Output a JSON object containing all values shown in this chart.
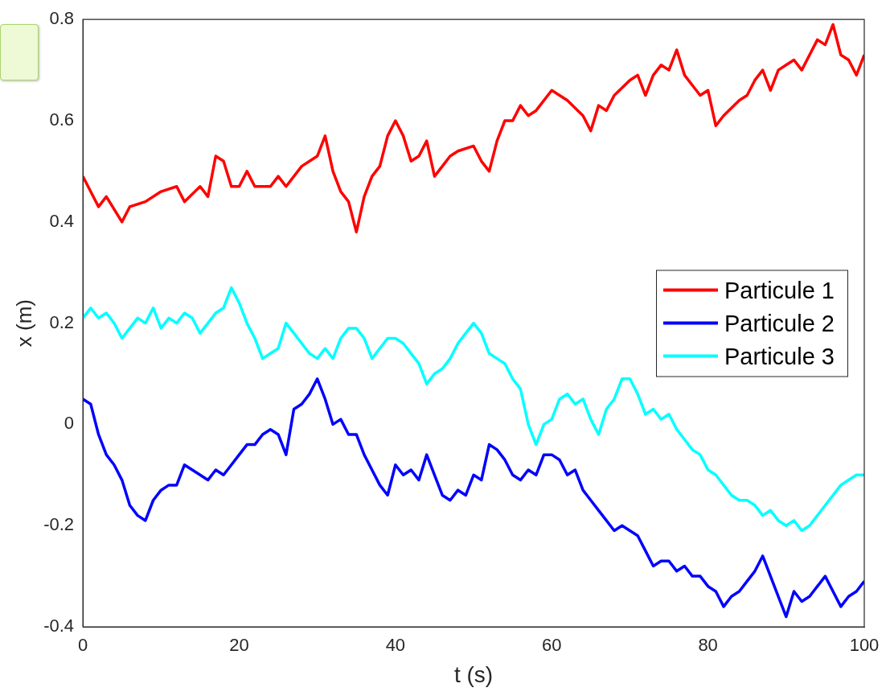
{
  "chart_data": {
    "type": "line",
    "xlabel": "t (s)",
    "ylabel": "x (m)",
    "xlim": [
      0,
      100
    ],
    "xticks": [
      0,
      20,
      40,
      60,
      80,
      100
    ],
    "ylim": [
      -0.4,
      0.8
    ],
    "yticks": [
      -0.4,
      -0.2,
      0,
      0.2,
      0.4,
      0.6,
      0.8
    ],
    "grid": false,
    "legend": "right",
    "marker": "none",
    "line_style": "solid",
    "x": [
      0,
      1,
      2,
      3,
      4,
      5,
      6,
      7,
      8,
      9,
      10,
      11,
      12,
      13,
      14,
      15,
      16,
      17,
      18,
      19,
      20,
      21,
      22,
      23,
      24,
      25,
      26,
      27,
      28,
      29,
      30,
      31,
      32,
      33,
      34,
      35,
      36,
      37,
      38,
      39,
      40,
      41,
      42,
      43,
      44,
      45,
      46,
      47,
      48,
      49,
      50,
      51,
      52,
      53,
      54,
      55,
      56,
      57,
      58,
      59,
      60,
      61,
      62,
      63,
      64,
      65,
      66,
      67,
      68,
      69,
      70,
      71,
      72,
      73,
      74,
      75,
      76,
      77,
      78,
      79,
      80,
      81,
      82,
      83,
      84,
      85,
      86,
      87,
      88,
      89,
      90,
      91,
      92,
      93,
      94,
      95,
      96,
      97,
      98,
      99,
      100
    ],
    "series": [
      {
        "name": "Particule 1",
        "color": "#ff0000",
        "x": [
          0,
          2,
          3,
          5,
          6,
          8,
          10,
          12,
          13,
          15,
          16,
          17,
          18,
          19,
          20,
          21,
          22,
          24,
          25,
          26,
          28,
          30,
          31,
          32,
          33,
          34,
          35,
          36,
          37,
          38,
          39,
          40,
          41,
          42,
          43,
          44,
          45,
          46,
          47,
          48,
          50,
          51,
          52,
          53,
          54,
          55,
          56,
          57,
          58,
          60,
          61,
          62,
          64,
          65,
          66,
          67,
          68,
          70,
          71,
          72,
          73,
          74,
          75,
          76,
          77,
          78,
          79,
          80,
          81,
          82,
          84,
          85,
          86,
          87,
          88,
          89,
          90,
          91,
          92,
          93,
          94,
          95,
          96,
          97,
          98,
          99,
          100
        ],
        "values": [
          0.49,
          0.43,
          0.45,
          0.4,
          0.43,
          0.44,
          0.46,
          0.47,
          0.44,
          0.47,
          0.45,
          0.53,
          0.52,
          0.47,
          0.47,
          0.5,
          0.47,
          0.47,
          0.49,
          0.47,
          0.51,
          0.53,
          0.57,
          0.5,
          0.46,
          0.44,
          0.38,
          0.45,
          0.49,
          0.51,
          0.57,
          0.6,
          0.57,
          0.52,
          0.53,
          0.56,
          0.49,
          0.51,
          0.53,
          0.54,
          0.55,
          0.52,
          0.5,
          0.56,
          0.6,
          0.6,
          0.63,
          0.61,
          0.62,
          0.66,
          0.65,
          0.64,
          0.61,
          0.58,
          0.63,
          0.62,
          0.65,
          0.68,
          0.69,
          0.65,
          0.69,
          0.71,
          0.7,
          0.74,
          0.69,
          0.67,
          0.65,
          0.66,
          0.59,
          0.61,
          0.64,
          0.65,
          0.68,
          0.7,
          0.66,
          0.7,
          0.71,
          0.72,
          0.7,
          0.73,
          0.76,
          0.75,
          0.79,
          0.73,
          0.72,
          0.69,
          0.73
        ]
      },
      {
        "name": "Particule 2",
        "color": "#0000ff",
        "values": [
          0.05,
          0.04,
          -0.02,
          -0.06,
          -0.08,
          -0.11,
          -0.16,
          -0.18,
          -0.19,
          -0.15,
          -0.13,
          -0.12,
          -0.12,
          -0.08,
          -0.09,
          -0.1,
          -0.11,
          -0.09,
          -0.1,
          -0.08,
          -0.06,
          -0.04,
          -0.04,
          -0.02,
          -0.01,
          -0.02,
          -0.06,
          0.03,
          0.04,
          0.06,
          0.09,
          0.05,
          0,
          0.01,
          -0.02,
          -0.02,
          -0.06,
          -0.09,
          -0.12,
          -0.14,
          -0.08,
          -0.1,
          -0.09,
          -0.11,
          -0.06,
          -0.1,
          -0.14,
          -0.15,
          -0.13,
          -0.14,
          -0.1,
          -0.11,
          -0.04,
          -0.05,
          -0.07,
          -0.1,
          -0.11,
          -0.09,
          -0.1,
          -0.06,
          -0.06,
          -0.07,
          -0.1,
          -0.09,
          -0.13,
          -0.15,
          -0.17,
          -0.19,
          -0.21,
          -0.2,
          -0.21,
          -0.22,
          -0.25,
          -0.28,
          -0.27,
          -0.27,
          -0.29,
          -0.28,
          -0.3,
          -0.3,
          -0.32,
          -0.33,
          -0.36,
          -0.34,
          -0.33,
          -0.31,
          -0.29,
          -0.26,
          -0.3,
          -0.34,
          -0.38,
          -0.33,
          -0.35,
          -0.34,
          -0.32,
          -0.3,
          -0.33,
          -0.36,
          -0.34,
          -0.33,
          -0.31
        ]
      },
      {
        "name": "Particule 3",
        "color": "#00ffff",
        "values": [
          0.21,
          0.23,
          0.21,
          0.22,
          0.2,
          0.17,
          0.19,
          0.21,
          0.2,
          0.23,
          0.19,
          0.21,
          0.2,
          0.22,
          0.21,
          0.18,
          0.2,
          0.22,
          0.23,
          0.27,
          0.24,
          0.2,
          0.17,
          0.13,
          0.14,
          0.15,
          0.2,
          0.18,
          0.16,
          0.14,
          0.13,
          0.15,
          0.13,
          0.17,
          0.19,
          0.19,
          0.17,
          0.13,
          0.15,
          0.17,
          0.17,
          0.16,
          0.14,
          0.12,
          0.08,
          0.1,
          0.11,
          0.13,
          0.16,
          0.18,
          0.2,
          0.18,
          0.14,
          0.13,
          0.12,
          0.09,
          0.07,
          0,
          -0.04,
          0,
          0.01,
          0.05,
          0.06,
          0.04,
          0.05,
          0.01,
          -0.02,
          0.03,
          0.05,
          0.09,
          0.09,
          0.06,
          0.02,
          0.03,
          0.01,
          0.02,
          -0.01,
          -0.03,
          -0.05,
          -0.06,
          -0.09,
          -0.1,
          -0.12,
          -0.14,
          -0.15,
          -0.15,
          -0.16,
          -0.18,
          -0.17,
          -0.19,
          -0.2,
          -0.19,
          -0.21,
          -0.2,
          -0.18,
          -0.16,
          -0.14,
          -0.12,
          -0.11,
          -0.1,
          -0.1
        ]
      }
    ]
  }
}
